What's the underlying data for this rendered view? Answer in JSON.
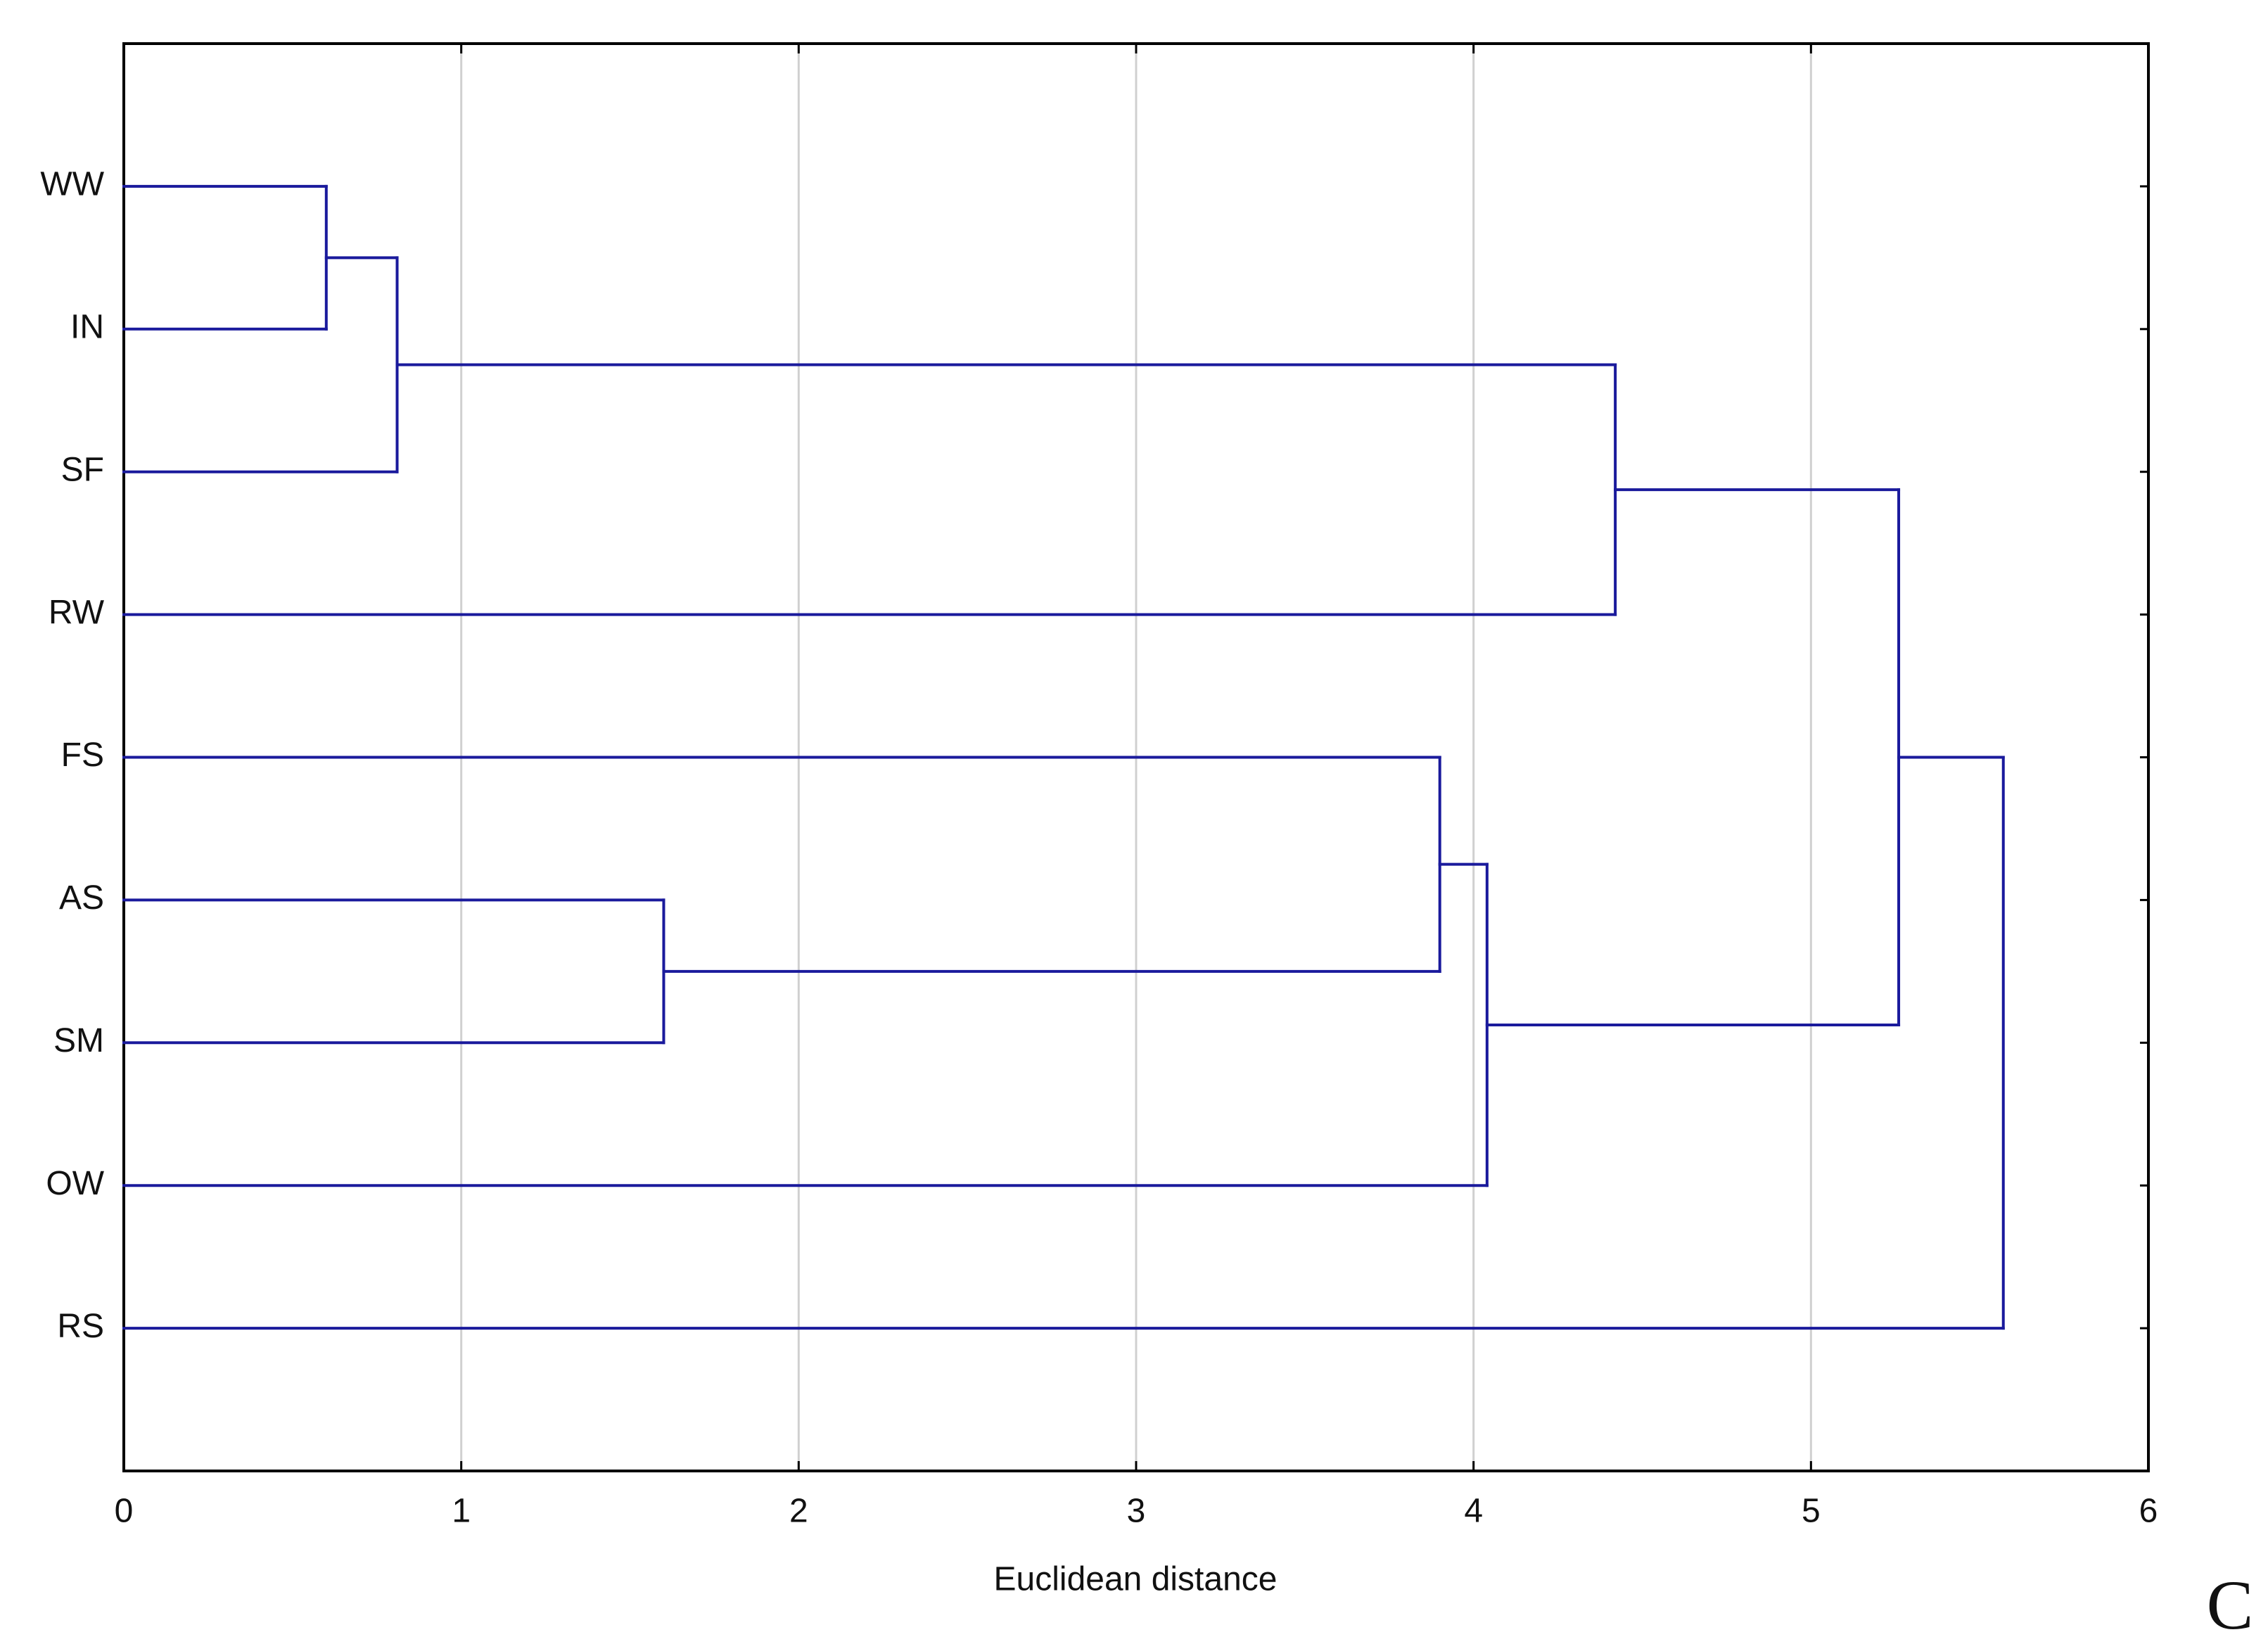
{
  "chart_data": {
    "type": "dendrogram",
    "orientation": "horizontal",
    "xlabel": "Euclidean distance",
    "panel_label": "C",
    "xlim": [
      0,
      6
    ],
    "xticks": [
      0,
      1,
      2,
      3,
      4,
      5,
      6
    ],
    "grid": true,
    "color": "#1a1a9c",
    "tree": {
      "height": 5.57,
      "children": [
        {
          "height": 5.26,
          "children": [
            {
              "height": 4.42,
              "children": [
                {
                  "height": 0.81,
                  "children": [
                    {
                      "height": 0.6,
                      "children": [
                        {
                          "label": "WW"
                        },
                        {
                          "label": "IN"
                        }
                      ]
                    },
                    {
                      "label": "SF"
                    }
                  ]
                },
                {
                  "label": "RW"
                }
              ]
            },
            {
              "height": 4.04,
              "children": [
                {
                  "height": 3.9,
                  "children": [
                    {
                      "label": "FS"
                    },
                    {
                      "height": 1.6,
                      "children": [
                        {
                          "label": "AS"
                        },
                        {
                          "label": "SM"
                        }
                      ]
                    }
                  ]
                },
                {
                  "label": "OW"
                }
              ]
            }
          ]
        },
        {
          "label": "RS"
        }
      ]
    }
  }
}
